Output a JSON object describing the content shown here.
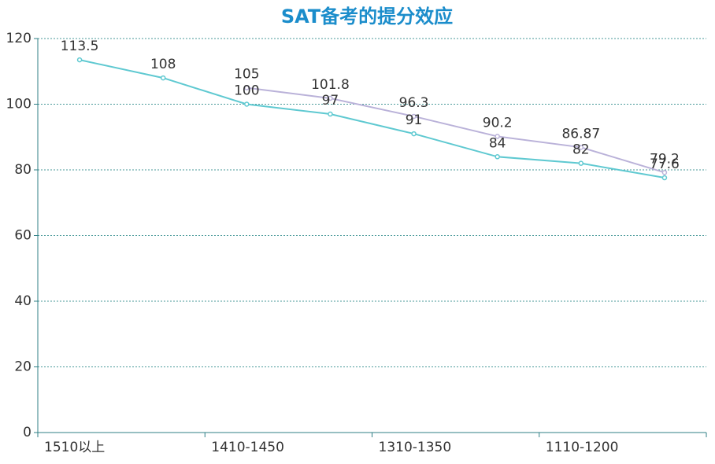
{
  "chart_data": {
    "type": "line",
    "title": "SAT备考的提分效应",
    "categories": [
      "1510以上",
      null,
      "1410-1450",
      null,
      "1310-1350",
      null,
      "1110-1200",
      null
    ],
    "series": [
      {
        "color": "#5fc9d1",
        "values": [
          113.5,
          108,
          100,
          97,
          91,
          84,
          82,
          77.6
        ]
      },
      {
        "color": "#bab2d9",
        "values": [
          null,
          null,
          105,
          101.8,
          96.3,
          90.2,
          86.87,
          79.2
        ]
      }
    ],
    "ylim": [
      0,
      120
    ],
    "yticks": [
      0,
      20,
      40,
      60,
      80,
      100,
      120
    ],
    "grid": true
  }
}
